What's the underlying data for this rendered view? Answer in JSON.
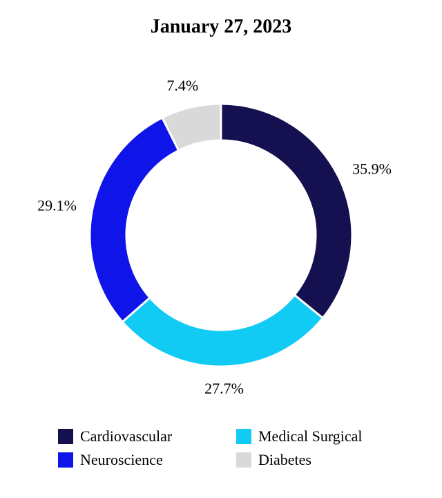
{
  "chart_data": {
    "type": "pie",
    "variant": "donut",
    "title": "January 27, 2023",
    "categories": [
      "Cardiovascular",
      "Medical Surgical",
      "Neuroscience",
      "Diabetes"
    ],
    "values": [
      35.9,
      27.7,
      29.1,
      7.4
    ],
    "labels": [
      "35.9%",
      "27.7%",
      "29.1%",
      "7.4%"
    ],
    "colors": [
      "#15104f",
      "#12cbf5",
      "#0f14e8",
      "#d9d9d9"
    ],
    "legend_position": "bottom",
    "legend": [
      {
        "name": "Cardiovascular",
        "color": "#15104f"
      },
      {
        "name": "Medical Surgical",
        "color": "#12cbf5"
      },
      {
        "name": "Neuroscience",
        "color": "#0f14e8"
      },
      {
        "name": "Diabetes",
        "color": "#d9d9d9"
      }
    ]
  }
}
